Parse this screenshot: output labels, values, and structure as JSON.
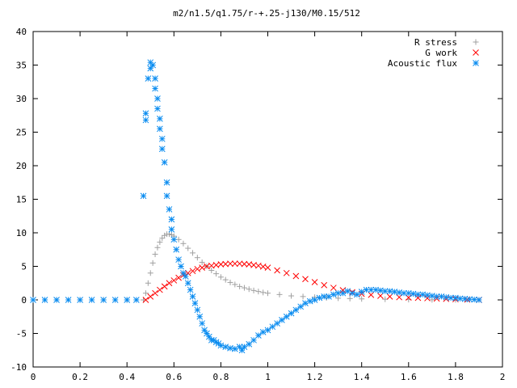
{
  "chart_data": {
    "type": "scatter",
    "title": "m2/n1.5/q1.75/r-+.25-j130/M0.15/512",
    "xlabel": "",
    "ylabel": "",
    "xlim": [
      0,
      2
    ],
    "ylim": [
      -10,
      40
    ],
    "xticks": [
      "0",
      "0.2",
      "0.4",
      "0.6",
      "0.8",
      "1",
      "1.2",
      "1.4",
      "1.6",
      "1.8",
      "2"
    ],
    "yticks": [
      "-10",
      "-5",
      "0",
      "5",
      "10",
      "15",
      "20",
      "25",
      "30",
      "35",
      "40"
    ],
    "legend_position": "top-right",
    "grid": false,
    "series": [
      {
        "name": "R stress",
        "marker": "+",
        "color": "#a0a0a0",
        "points": [
          [
            0.0,
            0
          ],
          [
            0.1,
            0
          ],
          [
            0.2,
            0
          ],
          [
            0.3,
            0
          ],
          [
            0.4,
            0
          ],
          [
            0.47,
            0
          ],
          [
            0.48,
            1.0
          ],
          [
            0.49,
            2.5
          ],
          [
            0.5,
            4.0
          ],
          [
            0.51,
            5.5
          ],
          [
            0.52,
            6.8
          ],
          [
            0.53,
            7.8
          ],
          [
            0.54,
            8.6
          ],
          [
            0.55,
            9.2
          ],
          [
            0.56,
            9.6
          ],
          [
            0.57,
            9.8
          ],
          [
            0.58,
            9.8
          ],
          [
            0.59,
            9.7
          ],
          [
            0.6,
            9.5
          ],
          [
            0.62,
            9.0
          ],
          [
            0.64,
            8.4
          ],
          [
            0.66,
            7.7
          ],
          [
            0.68,
            7.0
          ],
          [
            0.7,
            6.3
          ],
          [
            0.72,
            5.6
          ],
          [
            0.74,
            5.0
          ],
          [
            0.76,
            4.4
          ],
          [
            0.78,
            3.9
          ],
          [
            0.8,
            3.4
          ],
          [
            0.82,
            3.0
          ],
          [
            0.84,
            2.6
          ],
          [
            0.86,
            2.3
          ],
          [
            0.88,
            2.0
          ],
          [
            0.9,
            1.8
          ],
          [
            0.92,
            1.6
          ],
          [
            0.94,
            1.4
          ],
          [
            0.96,
            1.25
          ],
          [
            0.98,
            1.1
          ],
          [
            1.0,
            1.0
          ],
          [
            1.05,
            0.8
          ],
          [
            1.1,
            0.6
          ],
          [
            1.15,
            0.5
          ],
          [
            1.2,
            0.4
          ],
          [
            1.25,
            0.3
          ],
          [
            1.3,
            0.25
          ],
          [
            1.35,
            0.2
          ],
          [
            1.4,
            0.15
          ],
          [
            1.5,
            0.1
          ],
          [
            1.6,
            0.05
          ],
          [
            1.7,
            0.02
          ],
          [
            1.8,
            0.01
          ],
          [
            1.9,
            0
          ]
        ]
      },
      {
        "name": "G work",
        "marker": "x",
        "color": "#ff0000",
        "points": [
          [
            0.48,
            0
          ],
          [
            0.5,
            0.5
          ],
          [
            0.52,
            1.0
          ],
          [
            0.54,
            1.5
          ],
          [
            0.56,
            2.0
          ],
          [
            0.58,
            2.5
          ],
          [
            0.6,
            2.9
          ],
          [
            0.62,
            3.3
          ],
          [
            0.64,
            3.7
          ],
          [
            0.66,
            4.0
          ],
          [
            0.68,
            4.3
          ],
          [
            0.7,
            4.6
          ],
          [
            0.72,
            4.8
          ],
          [
            0.74,
            5.0
          ],
          [
            0.76,
            5.1
          ],
          [
            0.78,
            5.2
          ],
          [
            0.8,
            5.3
          ],
          [
            0.82,
            5.35
          ],
          [
            0.84,
            5.4
          ],
          [
            0.86,
            5.4
          ],
          [
            0.88,
            5.4
          ],
          [
            0.9,
            5.35
          ],
          [
            0.92,
            5.3
          ],
          [
            0.94,
            5.2
          ],
          [
            0.96,
            5.1
          ],
          [
            0.98,
            4.95
          ],
          [
            1.0,
            4.8
          ],
          [
            1.04,
            4.4
          ],
          [
            1.08,
            4.0
          ],
          [
            1.12,
            3.55
          ],
          [
            1.16,
            3.1
          ],
          [
            1.2,
            2.65
          ],
          [
            1.24,
            2.2
          ],
          [
            1.28,
            1.8
          ],
          [
            1.32,
            1.45
          ],
          [
            1.36,
            1.15
          ],
          [
            1.4,
            0.9
          ],
          [
            1.44,
            0.75
          ],
          [
            1.48,
            0.6
          ],
          [
            1.52,
            0.5
          ],
          [
            1.56,
            0.4
          ],
          [
            1.6,
            0.35
          ],
          [
            1.64,
            0.3
          ],
          [
            1.68,
            0.25
          ],
          [
            1.72,
            0.2
          ],
          [
            1.76,
            0.15
          ],
          [
            1.8,
            0.1
          ],
          [
            1.85,
            0.05
          ],
          [
            1.9,
            0
          ]
        ]
      },
      {
        "name": "Acoustic flux",
        "marker": "*",
        "color": "#0a8cf0",
        "points": [
          [
            0.0,
            0
          ],
          [
            0.05,
            0
          ],
          [
            0.1,
            0
          ],
          [
            0.15,
            0
          ],
          [
            0.2,
            0
          ],
          [
            0.25,
            0
          ],
          [
            0.3,
            0
          ],
          [
            0.35,
            0
          ],
          [
            0.4,
            0
          ],
          [
            0.44,
            0
          ],
          [
            0.47,
            15.5
          ],
          [
            0.48,
            27.8
          ],
          [
            0.48,
            26.8
          ],
          [
            0.49,
            33.0
          ],
          [
            0.5,
            35.4
          ],
          [
            0.5,
            34.5
          ],
          [
            0.51,
            35.0
          ],
          [
            0.52,
            33.0
          ],
          [
            0.52,
            31.5
          ],
          [
            0.53,
            30.0
          ],
          [
            0.53,
            28.5
          ],
          [
            0.54,
            27.0
          ],
          [
            0.54,
            25.5
          ],
          [
            0.55,
            24.0
          ],
          [
            0.55,
            22.5
          ],
          [
            0.56,
            20.5
          ],
          [
            0.57,
            17.5
          ],
          [
            0.57,
            15.5
          ],
          [
            0.58,
            13.5
          ],
          [
            0.59,
            12.0
          ],
          [
            0.59,
            10.5
          ],
          [
            0.6,
            9.0
          ],
          [
            0.61,
            7.5
          ],
          [
            0.62,
            6.0
          ],
          [
            0.63,
            5.0
          ],
          [
            0.64,
            4.0
          ],
          [
            0.65,
            3.5
          ],
          [
            0.66,
            2.5
          ],
          [
            0.67,
            1.5
          ],
          [
            0.68,
            0.5
          ],
          [
            0.69,
            -0.5
          ],
          [
            0.7,
            -1.5
          ],
          [
            0.71,
            -2.5
          ],
          [
            0.72,
            -3.5
          ],
          [
            0.73,
            -4.5
          ],
          [
            0.74,
            -5.0
          ],
          [
            0.75,
            -5.5
          ],
          [
            0.76,
            -6.0
          ],
          [
            0.77,
            -6.0
          ],
          [
            0.78,
            -6.3
          ],
          [
            0.79,
            -6.5
          ],
          [
            0.8,
            -6.8
          ],
          [
            0.82,
            -7.0
          ],
          [
            0.84,
            -7.2
          ],
          [
            0.86,
            -7.3
          ],
          [
            0.88,
            -7.0
          ],
          [
            0.89,
            -7.5
          ],
          [
            0.9,
            -7.0
          ],
          [
            0.92,
            -6.6
          ],
          [
            0.94,
            -6.0
          ],
          [
            0.96,
            -5.3
          ],
          [
            0.98,
            -4.8
          ],
          [
            1.0,
            -4.5
          ],
          [
            1.02,
            -4.0
          ],
          [
            1.04,
            -3.5
          ],
          [
            1.06,
            -3.0
          ],
          [
            1.08,
            -2.5
          ],
          [
            1.1,
            -2.0
          ],
          [
            1.12,
            -1.5
          ],
          [
            1.14,
            -1.0
          ],
          [
            1.16,
            -0.5
          ],
          [
            1.18,
            -0.2
          ],
          [
            1.2,
            0.0
          ],
          [
            1.22,
            0.3
          ],
          [
            1.24,
            0.5
          ],
          [
            1.26,
            0.5
          ],
          [
            1.28,
            0.8
          ],
          [
            1.3,
            1.0
          ],
          [
            1.32,
            1.0
          ],
          [
            1.34,
            1.3
          ],
          [
            1.36,
            1.0
          ],
          [
            1.38,
            0.8
          ],
          [
            1.4,
            1.2
          ],
          [
            1.42,
            1.5
          ],
          [
            1.44,
            1.5
          ],
          [
            1.46,
            1.5
          ],
          [
            1.48,
            1.4
          ],
          [
            1.5,
            1.3
          ],
          [
            1.52,
            1.3
          ],
          [
            1.54,
            1.2
          ],
          [
            1.56,
            1.1
          ],
          [
            1.58,
            1.0
          ],
          [
            1.6,
            1.0
          ],
          [
            1.62,
            0.9
          ],
          [
            1.64,
            0.8
          ],
          [
            1.66,
            0.8
          ],
          [
            1.68,
            0.7
          ],
          [
            1.7,
            0.6
          ],
          [
            1.72,
            0.5
          ],
          [
            1.74,
            0.5
          ],
          [
            1.76,
            0.4
          ],
          [
            1.78,
            0.3
          ],
          [
            1.8,
            0.3
          ],
          [
            1.82,
            0.2
          ],
          [
            1.84,
            0.15
          ],
          [
            1.86,
            0.1
          ],
          [
            1.88,
            0.05
          ],
          [
            1.9,
            0
          ]
        ]
      }
    ]
  }
}
